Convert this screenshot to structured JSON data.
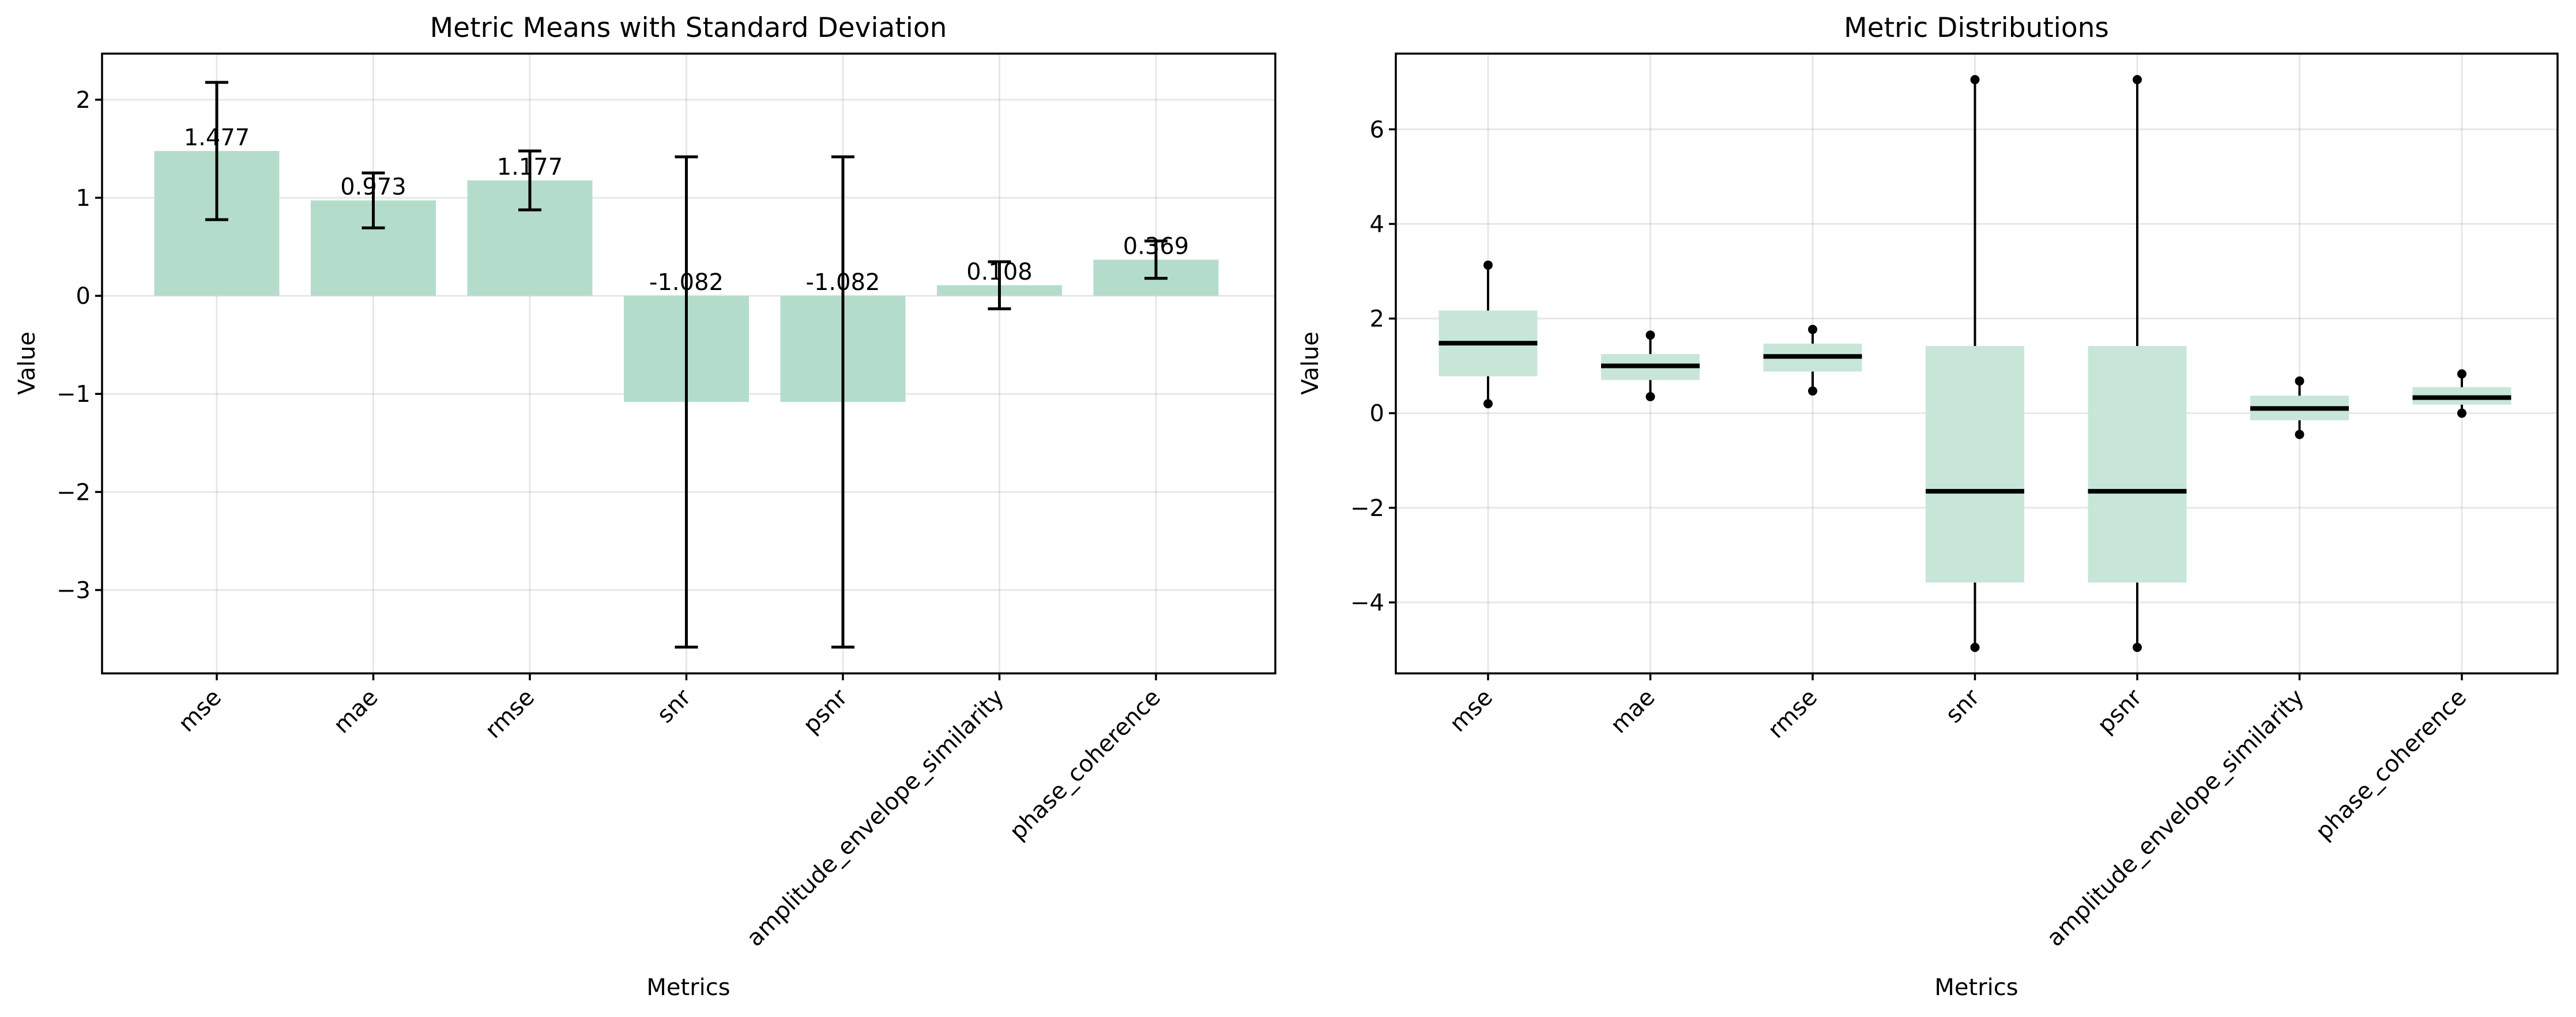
{
  "colors": {
    "bar": "#b4dccb",
    "box": "#c8e6d8",
    "line": "#000000"
  },
  "chart_data": [
    {
      "type": "bar",
      "title": "Metric Means with Standard Deviation",
      "xlabel": "Metrics",
      "ylabel": "Value",
      "categories": [
        "mse",
        "mae",
        "rmse",
        "snr",
        "psnr",
        "amplitude_envelope_similarity",
        "phase_coherence"
      ],
      "values": [
        1.477,
        0.973,
        1.177,
        -1.082,
        -1.082,
        0.108,
        0.369
      ],
      "value_labels": [
        "1.477",
        "0.973",
        "1.177",
        "-1.082",
        "-1.082",
        "0.108",
        "0.369"
      ],
      "error": [
        0.7,
        0.28,
        0.3,
        2.5,
        2.5,
        0.24,
        0.19
      ],
      "ylim": [
        -3.85,
        2.47
      ],
      "yticks": [
        2,
        1,
        0,
        -1,
        -2,
        -3
      ],
      "ytick_labels": [
        "2",
        "1",
        "0",
        "−1",
        "−2",
        "−3"
      ],
      "grid": true
    },
    {
      "type": "box",
      "title": "Metric Distributions",
      "xlabel": "Metrics",
      "ylabel": "Value",
      "categories": [
        "mse",
        "mae",
        "rmse",
        "snr",
        "psnr",
        "amplitude_envelope_similarity",
        "phase_coherence"
      ],
      "boxes": [
        {
          "min": 0.2,
          "q1": 0.78,
          "median": 1.48,
          "q3": 2.17,
          "max": 3.13
        },
        {
          "min": 0.35,
          "q1": 0.7,
          "median": 1.0,
          "q3": 1.25,
          "max": 1.65
        },
        {
          "min": 0.47,
          "q1": 0.88,
          "median": 1.2,
          "q3": 1.47,
          "max": 1.77
        },
        {
          "min": -4.95,
          "q1": -3.58,
          "median": -1.65,
          "q3": 1.42,
          "max": 7.05
        },
        {
          "min": -4.95,
          "q1": -3.58,
          "median": -1.65,
          "q3": 1.42,
          "max": 7.05
        },
        {
          "min": -0.45,
          "q1": -0.15,
          "median": 0.1,
          "q3": 0.37,
          "max": 0.68
        },
        {
          "min": 0.0,
          "q1": 0.18,
          "median": 0.33,
          "q3": 0.55,
          "max": 0.83
        }
      ],
      "ylim": [
        -5.5,
        7.6
      ],
      "yticks": [
        6,
        4,
        2,
        0,
        -2,
        -4
      ],
      "ytick_labels": [
        "6",
        "4",
        "2",
        "0",
        "−2",
        "−4"
      ],
      "grid": true
    }
  ]
}
